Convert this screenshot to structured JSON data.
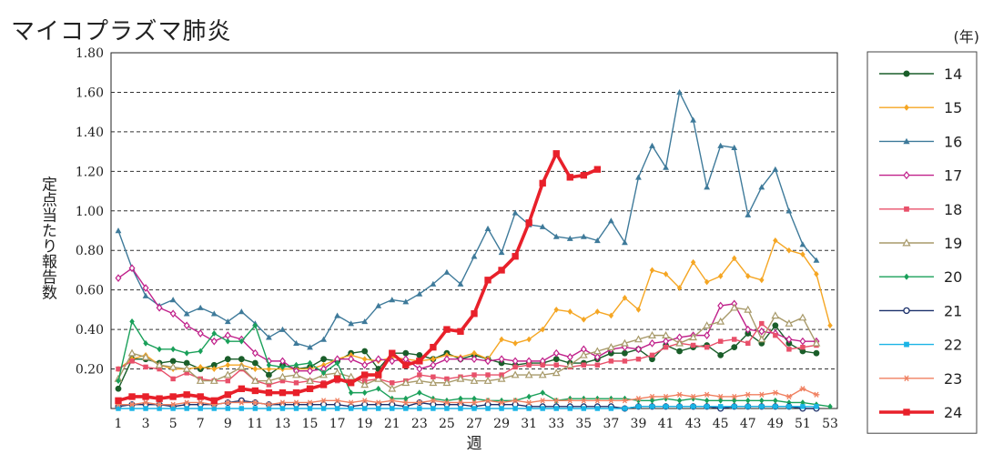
{
  "title": "マイコプラズマ肺炎",
  "chart_data": {
    "type": "line",
    "title": "マイコプラズマ肺炎",
    "xlabel": "週",
    "ylabel": "定点当たり報告数",
    "legend_title": "(年)",
    "legend_position": "right",
    "ylim": [
      0,
      1.8
    ],
    "xlim": [
      1,
      53
    ],
    "y_ticks": [
      "0.20",
      "0.40",
      "0.60",
      "0.80",
      "1.00",
      "1.20",
      "1.40",
      "1.60",
      "1.80"
    ],
    "x_ticks": [
      "1",
      "3",
      "5",
      "7",
      "9",
      "11",
      "13",
      "15",
      "17",
      "19",
      "21",
      "23",
      "25",
      "27",
      "29",
      "31",
      "33",
      "35",
      "37",
      "39",
      "41",
      "43",
      "45",
      "47",
      "49",
      "51",
      "53"
    ],
    "grid": "horizontal-dashed",
    "series": [
      {
        "name": "14",
        "color": "#1a5e2a",
        "marker": "circle-filled",
        "values": [
          0.1,
          0.25,
          0.25,
          0.23,
          0.24,
          0.23,
          0.2,
          0.22,
          0.25,
          0.25,
          0.23,
          0.17,
          0.22,
          0.2,
          0.21,
          0.25,
          0.24,
          0.28,
          0.29,
          0.2,
          0.28,
          0.28,
          0.27,
          0.25,
          0.28,
          0.25,
          0.27,
          0.25,
          0.23,
          0.22,
          0.23,
          0.23,
          0.25,
          0.23,
          0.23,
          0.25,
          0.28,
          0.28,
          0.3,
          0.25,
          0.32,
          0.29,
          0.31,
          0.32,
          0.27,
          0.31,
          0.38,
          0.33,
          0.42,
          0.33,
          0.29,
          0.28,
          null
        ]
      },
      {
        "name": "15",
        "color": "#f5a623",
        "marker": "diamond-filled",
        "values": [
          0.2,
          0.25,
          0.27,
          0.22,
          0.2,
          0.2,
          0.21,
          0.2,
          0.22,
          0.22,
          0.2,
          0.2,
          0.2,
          0.2,
          0.2,
          0.22,
          0.25,
          0.27,
          0.25,
          0.24,
          0.26,
          0.25,
          0.24,
          0.25,
          0.27,
          0.26,
          0.28,
          0.25,
          0.35,
          0.33,
          0.35,
          0.4,
          0.5,
          0.49,
          0.45,
          0.49,
          0.47,
          0.56,
          0.5,
          0.7,
          0.68,
          0.61,
          0.74,
          0.64,
          0.67,
          0.76,
          0.67,
          0.65,
          0.85,
          0.8,
          0.78,
          0.68,
          0.42
        ]
      },
      {
        "name": "16",
        "color": "#3e7a9a",
        "marker": "triangle-filled",
        "values": [
          0.9,
          0.71,
          0.57,
          0.52,
          0.55,
          0.48,
          0.51,
          0.48,
          0.44,
          0.49,
          0.43,
          0.36,
          0.4,
          0.33,
          0.31,
          0.35,
          0.47,
          0.43,
          0.44,
          0.52,
          0.55,
          0.54,
          0.58,
          0.63,
          0.69,
          0.63,
          0.77,
          0.91,
          0.79,
          0.99,
          0.93,
          0.92,
          0.87,
          0.86,
          0.87,
          0.85,
          0.95,
          0.84,
          1.17,
          1.33,
          1.22,
          1.6,
          1.46,
          1.12,
          1.33,
          1.32,
          0.98,
          1.12,
          1.21,
          1.0,
          0.83,
          0.75,
          null
        ]
      },
      {
        "name": "17",
        "color": "#c0208a",
        "marker": "diamond-open",
        "values": [
          0.66,
          0.71,
          0.61,
          0.51,
          0.48,
          0.42,
          0.38,
          0.34,
          0.37,
          0.35,
          0.28,
          0.24,
          0.24,
          0.19,
          0.19,
          0.2,
          0.25,
          0.25,
          0.22,
          0.25,
          0.24,
          0.25,
          0.2,
          0.22,
          0.25,
          0.25,
          0.25,
          0.24,
          0.25,
          0.24,
          0.24,
          0.24,
          0.28,
          0.26,
          0.3,
          0.26,
          0.3,
          0.31,
          0.3,
          0.33,
          0.34,
          0.36,
          0.37,
          0.37,
          0.52,
          0.53,
          0.4,
          0.39,
          0.38,
          0.35,
          0.34,
          0.34,
          null
        ]
      },
      {
        "name": "18",
        "color": "#e8506a",
        "marker": "square-filled",
        "values": [
          0.2,
          0.24,
          0.21,
          0.2,
          0.15,
          0.18,
          0.15,
          0.14,
          0.14,
          0.2,
          0.14,
          0.12,
          0.14,
          0.13,
          0.14,
          0.13,
          0.14,
          0.15,
          0.14,
          0.15,
          0.13,
          0.14,
          0.17,
          0.16,
          0.15,
          0.16,
          0.17,
          0.17,
          0.17,
          0.21,
          0.22,
          0.22,
          0.22,
          0.21,
          0.22,
          0.22,
          0.24,
          0.24,
          0.25,
          0.27,
          0.31,
          0.33,
          0.32,
          0.31,
          0.34,
          0.35,
          0.33,
          0.43,
          0.37,
          0.3,
          0.31,
          0.32,
          null
        ]
      },
      {
        "name": "19",
        "color": "#a89a6a",
        "marker": "triangle-open",
        "values": [
          0.15,
          0.28,
          0.26,
          0.22,
          0.21,
          0.2,
          0.14,
          0.14,
          0.17,
          0.21,
          0.14,
          0.14,
          0.16,
          0.17,
          0.14,
          0.17,
          0.18,
          0.16,
          0.12,
          0.15,
          0.1,
          0.13,
          0.14,
          0.13,
          0.13,
          0.15,
          0.14,
          0.14,
          0.15,
          0.17,
          0.17,
          0.17,
          0.18,
          0.22,
          0.27,
          0.29,
          0.31,
          0.33,
          0.35,
          0.37,
          0.37,
          0.33,
          0.36,
          0.42,
          0.44,
          0.51,
          0.5,
          0.35,
          0.47,
          0.43,
          0.46,
          0.33,
          null
        ]
      },
      {
        "name": "20",
        "color": "#1aa05a",
        "marker": "diamond-filled",
        "values": [
          0.14,
          0.44,
          0.33,
          0.3,
          0.3,
          0.28,
          0.29,
          0.38,
          0.34,
          0.34,
          0.42,
          0.22,
          0.21,
          0.22,
          0.23,
          0.18,
          0.23,
          0.08,
          0.08,
          0.1,
          0.05,
          0.05,
          0.08,
          0.05,
          0.04,
          0.05,
          0.05,
          0.04,
          0.04,
          0.04,
          0.06,
          0.08,
          0.04,
          0.05,
          0.05,
          0.05,
          0.05,
          0.05,
          0.04,
          0.04,
          0.05,
          0.04,
          0.05,
          0.04,
          0.04,
          0.04,
          0.04,
          0.04,
          0.04,
          0.03,
          0.03,
          0.02,
          0.01
        ]
      },
      {
        "name": "21",
        "color": "#1a2f6a",
        "marker": "circle-open",
        "values": [
          0.01,
          0.02,
          0.02,
          0.02,
          0.01,
          0.02,
          0.02,
          0.02,
          0.03,
          0.04,
          0.03,
          0.02,
          0.02,
          0.02,
          0.02,
          0.02,
          0.02,
          0.01,
          0.02,
          0.02,
          0.02,
          0.01,
          0.03,
          0.02,
          0.02,
          0.02,
          0.01,
          0.02,
          0.02,
          0.02,
          0.01,
          0.01,
          0.01,
          0.01,
          0.01,
          0.01,
          0.01,
          0.0,
          0.01,
          0.01,
          0.01,
          0.01,
          0.01,
          0.01,
          0.0,
          0.01,
          0.01,
          0.01,
          0.01,
          0.01,
          0.0,
          0.0,
          null
        ]
      },
      {
        "name": "22",
        "color": "#1ab4e6",
        "marker": "square-filled",
        "values": [
          0.0,
          0.0,
          0.0,
          0.0,
          0.0,
          0.0,
          0.0,
          0.0,
          0.0,
          0.0,
          0.0,
          0.0,
          0.0,
          0.0,
          0.0,
          0.0,
          0.0,
          0.0,
          0.0,
          0.0,
          0.0,
          0.0,
          0.0,
          0.0,
          0.0,
          0.0,
          0.0,
          0.0,
          0.0,
          0.0,
          0.0,
          0.0,
          0.0,
          0.0,
          0.0,
          0.0,
          0.0,
          0.0,
          0.01,
          0.01,
          0.01,
          0.01,
          0.01,
          0.01,
          0.01,
          0.01,
          0.01,
          0.01,
          0.01,
          0.01,
          0.01,
          0.01,
          null
        ]
      },
      {
        "name": "23",
        "color": "#f08060",
        "marker": "asterisk",
        "values": [
          0.02,
          0.02,
          0.03,
          0.02,
          0.02,
          0.03,
          0.03,
          0.02,
          0.03,
          0.03,
          0.03,
          0.02,
          0.03,
          0.03,
          0.03,
          0.04,
          0.04,
          0.03,
          0.04,
          0.03,
          0.04,
          0.03,
          0.03,
          0.04,
          0.03,
          0.03,
          0.03,
          0.04,
          0.03,
          0.04,
          0.03,
          0.04,
          0.04,
          0.04,
          0.04,
          0.04,
          0.04,
          0.04,
          0.05,
          0.06,
          0.06,
          0.07,
          0.06,
          0.07,
          0.06,
          0.06,
          0.07,
          0.07,
          0.08,
          0.06,
          0.1,
          0.07,
          null
        ]
      },
      {
        "name": "24",
        "color": "#e8202a",
        "marker": "square-filled",
        "thick": true,
        "values": [
          0.04,
          0.06,
          0.06,
          0.05,
          0.06,
          0.07,
          0.06,
          0.04,
          0.07,
          0.1,
          0.09,
          0.08,
          0.08,
          0.08,
          0.1,
          0.12,
          0.15,
          0.13,
          0.17,
          0.17,
          0.28,
          0.22,
          0.24,
          0.31,
          0.4,
          0.39,
          0.48,
          0.65,
          0.7,
          0.77,
          0.94,
          1.14,
          1.29,
          1.17,
          1.18,
          1.21,
          null,
          null,
          null,
          null,
          null,
          null,
          null,
          null,
          null,
          null,
          null,
          null,
          null,
          null,
          null,
          null,
          null
        ]
      }
    ]
  }
}
